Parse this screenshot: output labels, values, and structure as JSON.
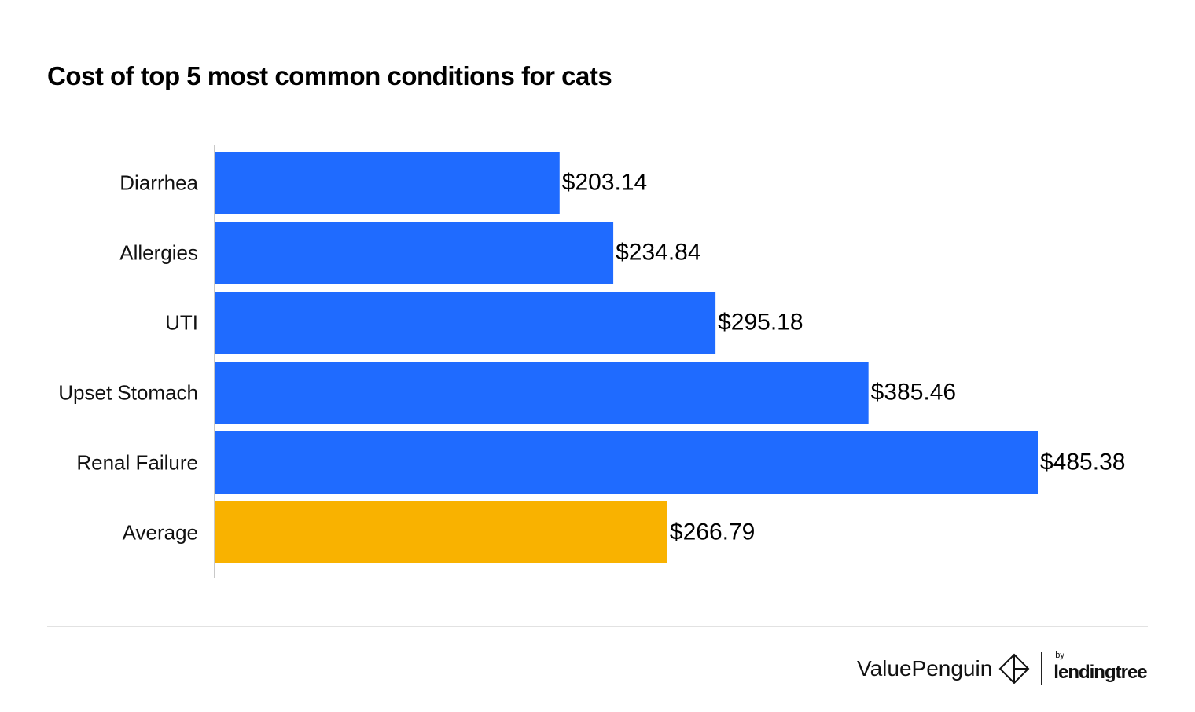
{
  "chart_data": {
    "type": "bar",
    "orientation": "horizontal",
    "title": "Cost of top 5 most common conditions for cats",
    "categories": [
      "Diarrhea",
      "Allergies",
      "UTI",
      "Upset Stomach",
      "Renal Failure",
      "Average"
    ],
    "values": [
      203.14,
      234.84,
      295.18,
      385.46,
      485.38,
      266.79
    ],
    "data_labels": [
      "$203.14",
      "$234.84",
      "$295.18",
      "$385.46",
      "$485.38",
      "$266.79"
    ],
    "bar_colors": [
      "#1f6bff",
      "#1f6bff",
      "#1f6bff",
      "#1f6bff",
      "#1f6bff",
      "#f9b200"
    ],
    "xlim": [
      0,
      485.38
    ],
    "grid": false,
    "xlabel": "",
    "ylabel": ""
  },
  "branding": {
    "brand": "ValuePenguin",
    "by": "by",
    "partner": "lendingtree"
  }
}
